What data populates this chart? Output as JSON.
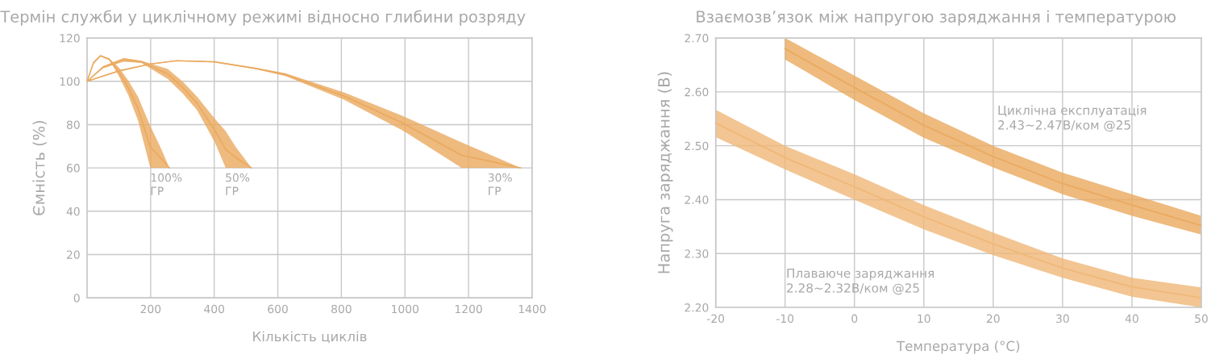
{
  "chart_data": [
    {
      "type": "line",
      "title": "Термін служби у циклічному режимі відносно глибини розряду",
      "xlabel": "Кількість циклів",
      "ylabel": "Ємність (%)",
      "xlim": [
        0,
        1400
      ],
      "xticks": [
        200,
        400,
        600,
        800,
        1000,
        1200,
        1400
      ],
      "ylim": [
        0,
        120
      ],
      "yticks": [
        0,
        20,
        40,
        60,
        80,
        100,
        120
      ],
      "grid": true,
      "legend": false,
      "series": [
        {
          "color": "#eaa95e",
          "x": [
            0,
            20,
            42,
            70,
            100,
            130,
            160,
            199,
            230,
            259
          ],
          "values": [
            100,
            108.5,
            111.8,
            110.2,
            104.4,
            96.9,
            87.5,
            69.7,
            64.9,
            60
          ],
          "lower": [
            100,
            108,
            111.5,
            109.8,
            102.4,
            93.5,
            82,
            60,
            60,
            60
          ],
          "upper": [
            100,
            109,
            112,
            110.5,
            106.4,
            100.3,
            92.9,
            79.3,
            69.8,
            60
          ]
        },
        {
          "color": "#eaa95e",
          "x": [
            0,
            50,
            115,
            171,
            254,
            300,
            346,
            402,
            436,
            467,
            517
          ],
          "values": [
            100,
            106.5,
            109.9,
            109,
            103.4,
            97.3,
            89.8,
            77.3,
            68.5,
            64.9,
            60
          ],
          "lower": [
            100,
            106,
            109,
            108.5,
            101,
            94.5,
            86.7,
            71.8,
            60,
            60,
            60
          ],
          "upper": [
            100,
            107,
            110.8,
            109.5,
            105.7,
            100,
            92.9,
            82.7,
            77,
            69.8,
            60
          ]
        },
        {
          "color": "#eaa95e",
          "x": [
            0,
            100,
            200,
            282,
            400,
            531,
            624,
            808,
            993,
            1178,
            1270,
            1363
          ],
          "values": [
            100,
            104.8,
            108,
            109.5,
            109,
            105.9,
            103.1,
            93.2,
            80.7,
            65.9,
            63,
            60
          ],
          "lower": [
            100,
            104.5,
            107.8,
            109.3,
            108.8,
            105.6,
            102.4,
            91.5,
            77.3,
            60,
            60,
            60
          ],
          "upper": [
            100,
            105,
            108.2,
            109.7,
            109.2,
            106.2,
            103.7,
            94.9,
            84,
            71.8,
            66,
            60
          ]
        }
      ],
      "annotations": [
        "100%\nГР",
        "50%\nГР",
        "30%\nГР"
      ]
    },
    {
      "type": "line",
      "title": "Взаємозв’язок між напругою заряджання і температурою",
      "xlabel": "Температура (°C)",
      "ylabel": "Напруга заряджання (В)",
      "xlim": [
        -20,
        50
      ],
      "xticks": [
        -20,
        -10,
        0,
        10,
        20,
        30,
        40,
        50
      ],
      "ylim": [
        2.2,
        2.7
      ],
      "yticks": [
        {
          "value": 2.2,
          "label": "2.20"
        },
        {
          "value": 2.3,
          "label": "2.30"
        },
        {
          "value": 2.4,
          "label": "2.40"
        },
        {
          "value": 2.5,
          "label": "2.50"
        },
        {
          "value": 2.6,
          "label": "2.60"
        },
        {
          "value": 2.7,
          "label": "2.70"
        }
      ],
      "grid": true,
      "legend": false,
      "series": [
        {
          "color": "#eaa95e",
          "x": [
            -10,
            0,
            10,
            20,
            30,
            40,
            50
          ],
          "values": [
            2.68,
            2.608,
            2.538,
            2.48,
            2.43,
            2.39,
            2.352
          ],
          "lower": [
            2.66,
            2.585,
            2.515,
            2.46,
            2.41,
            2.37,
            2.335
          ],
          "upper": [
            2.7,
            2.63,
            2.56,
            2.5,
            2.45,
            2.41,
            2.37
          ]
        },
        {
          "color": "#efb777",
          "x": [
            -20,
            -10,
            0,
            10,
            20,
            30,
            40,
            50
          ],
          "values": [
            2.542,
            2.478,
            2.424,
            2.368,
            2.318,
            2.273,
            2.238,
            2.218
          ],
          "lower": [
            2.516,
            2.456,
            2.4,
            2.345,
            2.297,
            2.255,
            2.22,
            2.2
          ],
          "upper": [
            2.567,
            2.5,
            2.447,
            2.39,
            2.339,
            2.291,
            2.255,
            2.237
          ]
        }
      ],
      "annotations": [
        "Циклічна експлуатація\n2.43~2.47В/ком @25",
        "Плаваюче заряджання\n2.28~2.32В/ком @25"
      ]
    }
  ]
}
